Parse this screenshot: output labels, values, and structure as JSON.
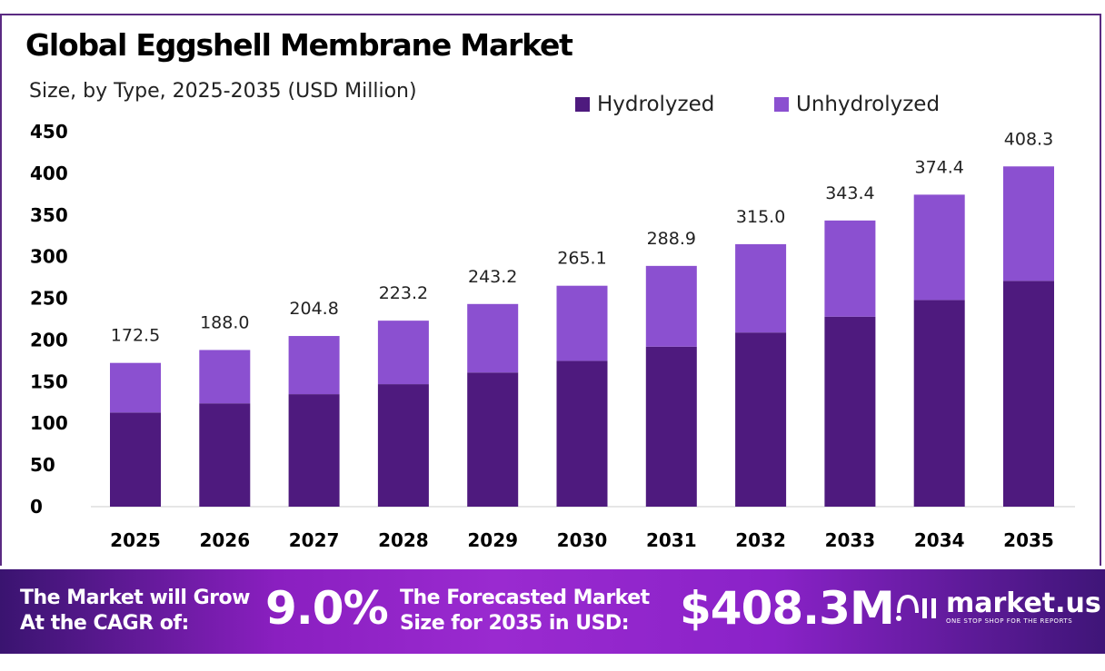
{
  "chart_data": {
    "type": "bar",
    "stacked": true,
    "title": "Global Eggshell Membrane Market",
    "subtitle": "Size, by Type, 2025-2035 (USD Million)",
    "categories": [
      "2025",
      "2026",
      "2027",
      "2028",
      "2029",
      "2030",
      "2031",
      "2032",
      "2033",
      "2034",
      "2035"
    ],
    "series": [
      {
        "name": "Hydrolyzed",
        "color": "#4e1a7e",
        "values": [
          113,
          124,
          135,
          147,
          161,
          175,
          192,
          209,
          228,
          248,
          271
        ]
      },
      {
        "name": "Unhydrolyzed",
        "color": "#8b50d0",
        "values": [
          59.5,
          64,
          69.8,
          76.2,
          82.2,
          90.1,
          96.9,
          106,
          115.4,
          126.4,
          137.3
        ]
      }
    ],
    "totals": [
      "172.5",
      "188.0",
      "204.8",
      "223.2",
      "243.2",
      "265.1",
      "288.9",
      "315.0",
      "343.4",
      "374.4",
      "408.3"
    ],
    "ylim": [
      0,
      450
    ],
    "yticks": [
      "0",
      "50",
      "100",
      "150",
      "200",
      "250",
      "300",
      "350",
      "400",
      "450"
    ],
    "legend_position": "top-right",
    "grid": false
  },
  "banner": {
    "cagr_label_1": "The Market will Grow",
    "cagr_label_2": "At the CAGR of:",
    "cagr_value": "9.0%",
    "forecast_label_1": "The Forecasted Market",
    "forecast_label_2": "Size for 2035 in USD:",
    "forecast_value": "$408.3M",
    "logo_name": "market.us",
    "logo_tagline": "ONE STOP SHOP FOR THE REPORTS"
  }
}
